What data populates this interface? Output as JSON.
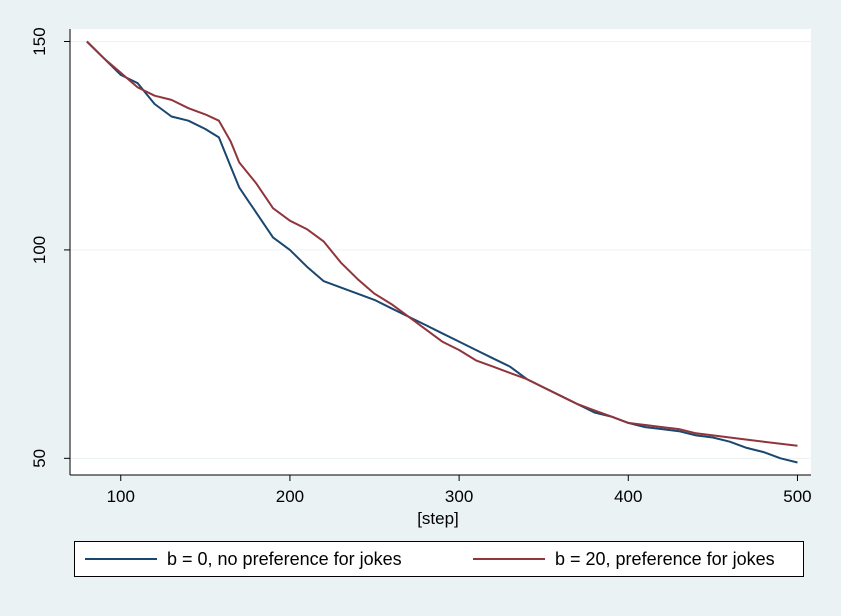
{
  "chart_data": {
    "type": "line",
    "xlabel": "[step]",
    "ylabel": "",
    "xlim": [
      70,
      508
    ],
    "ylim": [
      46,
      153
    ],
    "xticks": [
      100,
      200,
      300,
      400,
      500
    ],
    "yticks": [
      50,
      100,
      150
    ],
    "xtick_labels": [
      "100",
      "200",
      "300",
      "400",
      "500"
    ],
    "ytick_labels": [
      "50",
      "100",
      "150"
    ],
    "grid": "horizontal",
    "legend_position": "bottom",
    "series": [
      {
        "name": "b = 0, no preference for jokes",
        "color": "#1a476f",
        "x": [
          80,
          90,
          100,
          110,
          120,
          130,
          140,
          150,
          158,
          165,
          170,
          175,
          180,
          190,
          200,
          210,
          220,
          230,
          240,
          250,
          260,
          270,
          280,
          290,
          300,
          310,
          320,
          330,
          340,
          350,
          360,
          370,
          380,
          390,
          400,
          410,
          420,
          430,
          440,
          450,
          460,
          470,
          480,
          490,
          500
        ],
        "y": [
          150,
          146,
          142,
          140,
          135,
          132,
          131,
          129,
          127,
          120,
          115,
          112,
          109,
          103,
          100,
          96,
          92.5,
          91,
          89.5,
          88,
          86,
          84,
          82,
          80,
          78,
          76,
          74,
          72,
          69,
          67,
          65,
          63,
          61,
          60,
          58.5,
          57.5,
          57,
          56.5,
          55.5,
          55,
          54,
          52.5,
          51.5,
          50,
          49
        ]
      },
      {
        "name": "b = 20, preference for jokes",
        "color": "#90353b",
        "x": [
          80,
          90,
          100,
          110,
          120,
          130,
          140,
          150,
          158,
          165,
          170,
          175,
          180,
          190,
          200,
          210,
          220,
          230,
          240,
          250,
          260,
          270,
          280,
          290,
          300,
          310,
          320,
          330,
          340,
          350,
          360,
          370,
          380,
          390,
          400,
          410,
          420,
          430,
          440,
          450,
          460,
          470,
          480,
          490,
          500
        ],
        "y": [
          150,
          146,
          142.5,
          139,
          137,
          136,
          134,
          132.5,
          131,
          126,
          121,
          118.5,
          116,
          110,
          107,
          105,
          102,
          97,
          93,
          89.5,
          87,
          84,
          81,
          78,
          76,
          73.5,
          72,
          70.5,
          69,
          67,
          65,
          63,
          61.5,
          60,
          58.5,
          58,
          57.5,
          57,
          56,
          55.5,
          55,
          54.5,
          54,
          53.5,
          53
        ]
      }
    ]
  }
}
